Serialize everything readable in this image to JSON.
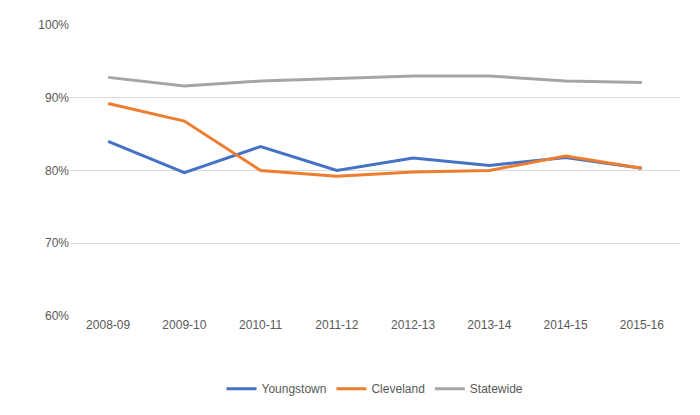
{
  "chart_data": {
    "type": "line",
    "categories": [
      "2008-09",
      "2009-10",
      "2010-11",
      "2011-12",
      "2012-13",
      "2013-14",
      "2014-15",
      "2015-16"
    ],
    "series": [
      {
        "name": "Youngstown",
        "color": "#4472c4",
        "values": [
          84.0,
          79.7,
          83.3,
          80.0,
          81.7,
          80.7,
          81.8,
          80.3
        ]
      },
      {
        "name": "Cleveland",
        "color": "#ed7d31",
        "values": [
          89.2,
          86.8,
          80.0,
          79.2,
          79.8,
          80.0,
          82.0,
          80.3
        ]
      },
      {
        "name": "Statewide",
        "color": "#a5a5a5",
        "values": [
          92.8,
          91.6,
          92.3,
          92.6,
          93.0,
          93.0,
          92.3,
          92.1
        ]
      }
    ],
    "ylim": [
      60,
      100
    ],
    "yticks": [
      {
        "value": 60,
        "label": "60%"
      },
      {
        "value": 70,
        "label": "70%"
      },
      {
        "value": 80,
        "label": "80%"
      },
      {
        "value": 90,
        "label": "90%"
      },
      {
        "value": 100,
        "label": "100%"
      }
    ],
    "grid": true,
    "legend": "bottom"
  }
}
